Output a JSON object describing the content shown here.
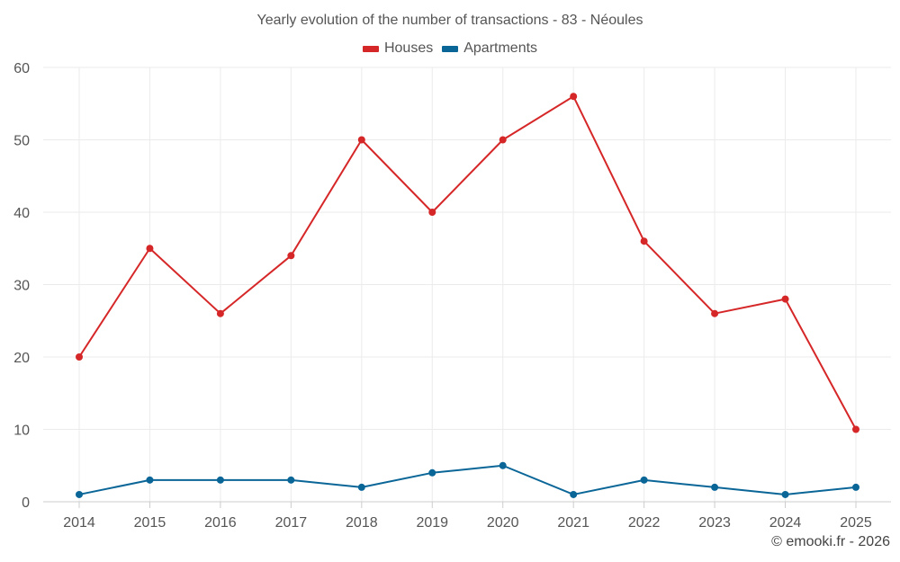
{
  "chart_data": {
    "type": "line",
    "title": "Yearly evolution of the number of transactions - 83 - Néoules",
    "categories": [
      "2014",
      "2015",
      "2016",
      "2017",
      "2018",
      "2019",
      "2020",
      "2021",
      "2022",
      "2023",
      "2024",
      "2025"
    ],
    "series": [
      {
        "name": "Houses",
        "color": "#d62728",
        "values": [
          20,
          35,
          26,
          34,
          50,
          40,
          50,
          56,
          36,
          26,
          28,
          10
        ]
      },
      {
        "name": "Apartments",
        "color": "#0b6698",
        "values": [
          1,
          3,
          3,
          3,
          2,
          4,
          5,
          1,
          3,
          2,
          1,
          2
        ]
      }
    ],
    "ylim": [
      0,
      60
    ],
    "yticks": [
      0,
      10,
      20,
      30,
      40,
      50,
      60
    ],
    "xlabel": "",
    "ylabel": "",
    "grid": true,
    "legend": "top-center"
  },
  "credit": "© emooki.fr - 2026"
}
